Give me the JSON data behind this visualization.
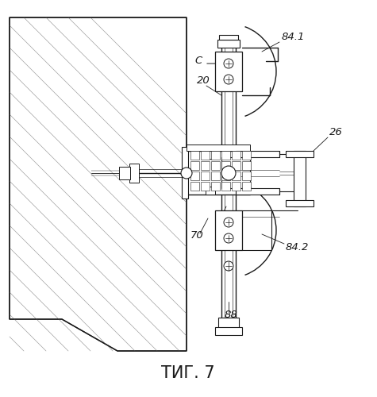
{
  "title": "ΤИГ. 7",
  "title_fontsize": 15,
  "background_color": "#ffffff",
  "line_color": "#1a1a1a",
  "fig_width": 4.75,
  "fig_height": 5.0,
  "dpi": 100
}
